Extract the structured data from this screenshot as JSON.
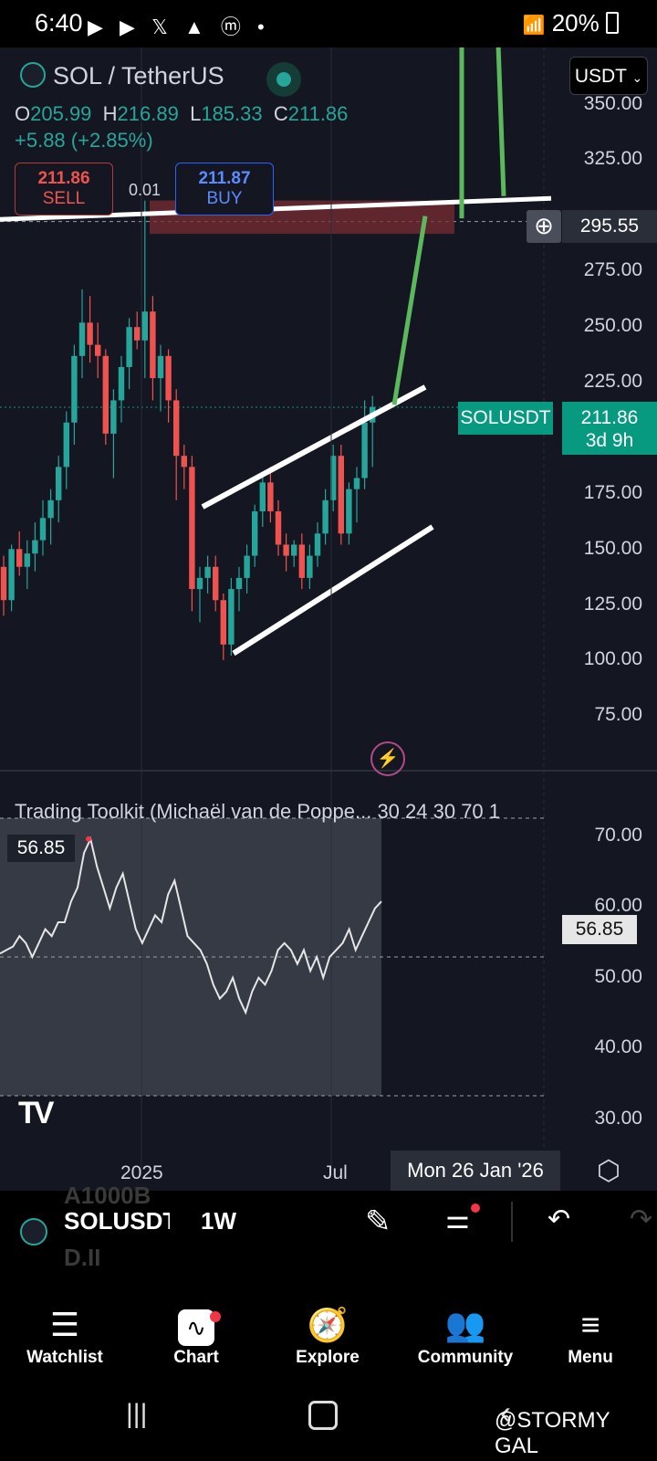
{
  "status_bar": {
    "time": "6:40",
    "icons": [
      "youtube-icon",
      "youtube-icon",
      "x-icon",
      "gallery-icon",
      "coinmarketcap-icon",
      "dot"
    ],
    "battery": "20%"
  },
  "header": {
    "symbol_title": "SOL / TetherUS",
    "ohlc": {
      "o_label": "O",
      "o": "205.99",
      "h_label": "H",
      "h": "216.89",
      "l_label": "L",
      "l": "185.33",
      "c_label": "C",
      "c": "211.86"
    },
    "change": "+5.88 (+2.85%)",
    "currency": "USDT",
    "sell": {
      "price": "211.86",
      "label": "SELL"
    },
    "spread": "0.01",
    "buy": {
      "price": "211.87",
      "label": "BUY"
    }
  },
  "price_axis": {
    "ticks": [
      "350.00",
      "325.00",
      "275.00",
      "250.00",
      "225.00",
      "175.00",
      "150.00",
      "125.00",
      "100.00",
      "75.00"
    ],
    "crosshair_price": "295.55",
    "symbol_tag": "SOLUSDT",
    "last_price": "211.86",
    "countdown": "3d 9h"
  },
  "indicator": {
    "title": "Trading Toolkit (Michaël van de Poppe... 30 24 30 70 1",
    "value_left": "56.85",
    "value_right": "56.85",
    "ticks": [
      "70.00",
      "60.00",
      "50.00",
      "40.00",
      "30.00"
    ]
  },
  "time_axis": {
    "labels": [
      "2025",
      "Jul"
    ],
    "crosshair_date": "Mon 26 Jan '26"
  },
  "toolbar": {
    "ghost_text_top": "A1000B",
    "ghost_text_bottom": "D.II",
    "symbol": "SOLUSDT",
    "interval": "1W"
  },
  "bottom_nav": [
    {
      "label": "Watchlist",
      "icon": "watchlist-icon"
    },
    {
      "label": "Chart",
      "icon": "chart-icon"
    },
    {
      "label": "Explore",
      "icon": "compass-icon"
    },
    {
      "label": "Community",
      "icon": "community-icon"
    },
    {
      "label": "Menu",
      "icon": "menu-icon"
    }
  ],
  "watermark": "@STORMY GAL",
  "colors": {
    "bull": "#26a69a",
    "bear": "#ef5350",
    "projection": "#5cb85c",
    "background": "#141722"
  },
  "chart_data": {
    "type": "candlestick",
    "interval": "1W",
    "ylim": [
      60,
      355
    ],
    "candles": [
      [
        140,
        145,
        118,
        125
      ],
      [
        125,
        150,
        120,
        148
      ],
      [
        148,
        156,
        136,
        140
      ],
      [
        140,
        152,
        130,
        146
      ],
      [
        146,
        160,
        138,
        152
      ],
      [
        152,
        170,
        145,
        162
      ],
      [
        162,
        175,
        150,
        170
      ],
      [
        170,
        190,
        160,
        185
      ],
      [
        185,
        210,
        175,
        205
      ],
      [
        205,
        240,
        195,
        235
      ],
      [
        235,
        265,
        225,
        250
      ],
      [
        250,
        262,
        232,
        240
      ],
      [
        240,
        250,
        225,
        235
      ],
      [
        235,
        238,
        195,
        200
      ],
      [
        200,
        220,
        180,
        215
      ],
      [
        215,
        235,
        205,
        230
      ],
      [
        230,
        252,
        220,
        248
      ],
      [
        248,
        255,
        238,
        242
      ],
      [
        242,
        305,
        225,
        255
      ],
      [
        255,
        262,
        215,
        225
      ],
      [
        225,
        240,
        210,
        235
      ],
      [
        235,
        238,
        205,
        215
      ],
      [
        215,
        220,
        170,
        190
      ],
      [
        190,
        195,
        175,
        185
      ],
      [
        185,
        190,
        120,
        130
      ],
      [
        130,
        140,
        115,
        135
      ],
      [
        135,
        145,
        128,
        140
      ],
      [
        140,
        145,
        120,
        125
      ],
      [
        125,
        128,
        98,
        105
      ],
      [
        105,
        135,
        100,
        130
      ],
      [
        130,
        140,
        120,
        135
      ],
      [
        135,
        150,
        128,
        145
      ],
      [
        145,
        168,
        140,
        165
      ],
      [
        165,
        182,
        158,
        178
      ],
      [
        178,
        185,
        160,
        165
      ],
      [
        165,
        170,
        145,
        150
      ],
      [
        150,
        155,
        138,
        145
      ],
      [
        145,
        152,
        140,
        150
      ],
      [
        150,
        155,
        130,
        135
      ],
      [
        135,
        150,
        130,
        145
      ],
      [
        145,
        160,
        140,
        155
      ],
      [
        155,
        175,
        150,
        170
      ],
      [
        170,
        195,
        165,
        190
      ],
      [
        190,
        195,
        150,
        155
      ],
      [
        155,
        178,
        150,
        175
      ],
      [
        175,
        185,
        160,
        180
      ],
      [
        180,
        215,
        175,
        205
      ],
      [
        205,
        217,
        185,
        212
      ]
    ],
    "drawings": [
      {
        "type": "channel-upper",
        "color": "white",
        "from_index": 23,
        "to_index": 50
      },
      {
        "type": "channel-lower",
        "color": "white",
        "from_index": 29,
        "to_index": 50
      },
      {
        "type": "horizontal-resistance",
        "color": "white"
      },
      {
        "type": "resistance-zone",
        "color": "#7a2c33"
      },
      {
        "type": "projection-arrow",
        "color": "green"
      }
    ],
    "indicator_series": [
      50.5,
      51,
      51.5,
      53,
      52,
      50,
      52,
      54,
      53,
      55,
      55,
      58,
      60,
      65,
      67,
      63,
      60,
      57,
      60,
      62,
      58,
      54,
      52,
      54,
      56,
      55,
      59,
      61,
      57,
      53,
      52,
      51,
      49,
      46,
      44,
      45,
      47,
      44,
      42,
      45,
      47,
      46,
      48,
      51,
      52,
      51,
      49,
      51,
      48,
      50,
      47,
      50,
      51,
      52,
      54,
      51,
      53,
      55,
      57,
      58
    ]
  }
}
